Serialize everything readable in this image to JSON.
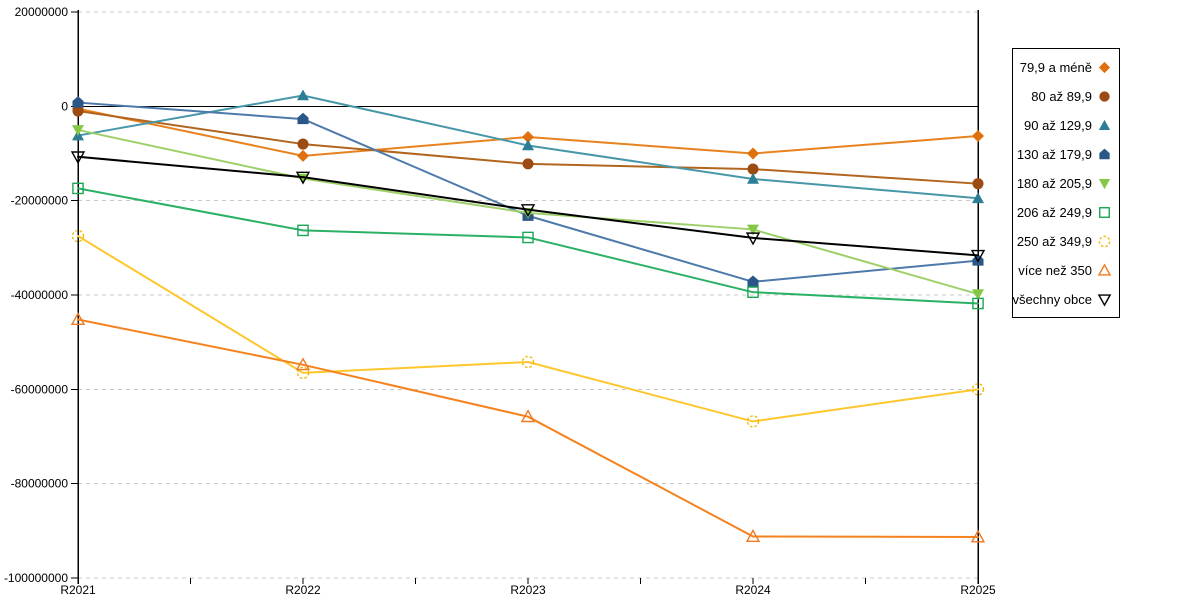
{
  "chart_data": {
    "type": "line",
    "title": "",
    "xlabel": "",
    "ylabel": "",
    "categories": [
      "R2021",
      "R2022",
      "R2023",
      "R2024",
      "R2025"
    ],
    "y_axis": {
      "min": -100000000,
      "max": 20000000,
      "tick_step": 20000000,
      "tick_labels": [
        "20000000",
        "0",
        "-20000000",
        "-40000000",
        "-60000000",
        "-80000000",
        "-100000000"
      ]
    },
    "grid": "horizontal-dashed",
    "gridline_color": "#c8c8c8",
    "zero_line_color": "#000000",
    "legend_position": "right",
    "series": [
      {
        "name": "79,9 a méně",
        "marker": "diamond",
        "fill": "solid",
        "line_color": "#e8821e",
        "marker_color": "#e06f0d",
        "values": [
          -500000,
          -10500000,
          -6500000,
          -10000000,
          -6300000
        ]
      },
      {
        "name": "80 až 89,9",
        "marker": "circle",
        "fill": "solid",
        "line_color": "#b2651f",
        "marker_color": "#9c4b13",
        "values": [
          -1000000,
          -8000000,
          -12200000,
          -13300000,
          -16400000
        ]
      },
      {
        "name": "90 až 129,9",
        "marker": "triangle-up",
        "fill": "solid",
        "line_color": "#4797a8",
        "marker_color": "#2c7d96",
        "values": [
          -6200000,
          2300000,
          -8300000,
          -15400000,
          -19500000
        ]
      },
      {
        "name": "130 až 179,9",
        "marker": "pentagon",
        "fill": "solid",
        "line_color": "#4e79ab",
        "marker_color": "#2a5787",
        "values": [
          800000,
          -2700000,
          -23200000,
          -37200000,
          -32700000
        ]
      },
      {
        "name": "180 až 205,9",
        "marker": "triangle-down",
        "fill": "solid",
        "line_color": "#9ed06a",
        "marker_color": "#84c846",
        "values": [
          -5000000,
          -15300000,
          -22600000,
          -26100000,
          -39800000
        ]
      },
      {
        "name": "206 až 249,9",
        "marker": "square",
        "fill": "open",
        "line_color": "#2bb165",
        "marker_color": "#1ca653",
        "values": [
          -17400000,
          -26300000,
          -27800000,
          -39400000,
          -41800000
        ]
      },
      {
        "name": "250 až 349,9",
        "marker": "circle-dashed",
        "fill": "open",
        "line_color": "#ffc72e",
        "marker_color": "#f0b90a",
        "values": [
          -27500000,
          -56500000,
          -54200000,
          -66800000,
          -60000000
        ]
      },
      {
        "name": "více než 350",
        "marker": "triangle-up",
        "fill": "open",
        "line_color": "#f5821e",
        "marker_color": "#f07a23",
        "values": [
          -45200000,
          -54800000,
          -65800000,
          -91200000,
          -91300000
        ]
      },
      {
        "name": "všechny obce",
        "marker": "triangle-down",
        "fill": "open",
        "line_color": "#000000",
        "marker_color": "#000000",
        "values": [
          -10700000,
          -15000000,
          -21900000,
          -27900000,
          -31600000
        ]
      }
    ]
  }
}
